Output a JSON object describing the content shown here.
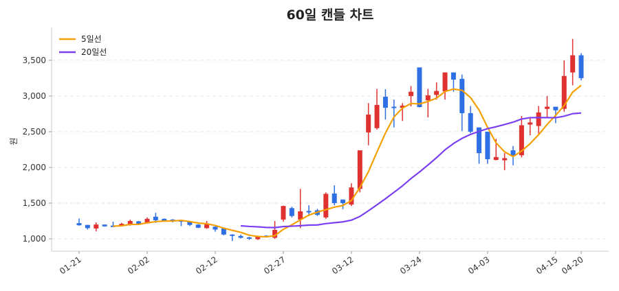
{
  "chart_data": {
    "type": "candlestick",
    "title": "60일 캔들 차트",
    "xlabel": "",
    "ylabel": "원",
    "ylim": [
      827,
      3960
    ],
    "yticks": [
      1000,
      1500,
      2000,
      2500,
      3000,
      3500
    ],
    "ytick_labels": [
      "1,000",
      "1,500",
      "2,000",
      "2,500",
      "3,000",
      "3,500"
    ],
    "xticks": [
      {
        "index": 0,
        "label": "01-21"
      },
      {
        "index": 8,
        "label": "02-02"
      },
      {
        "index": 16,
        "label": "02-12"
      },
      {
        "index": 24,
        "label": "02-27"
      },
      {
        "index": 32,
        "label": "03-12"
      },
      {
        "index": 40,
        "label": "03-24"
      },
      {
        "index": 48,
        "label": "04-03"
      },
      {
        "index": 56,
        "label": "04-15"
      },
      {
        "index": 59,
        "label": "04-20"
      }
    ],
    "grid": true,
    "legend_position": "top-left",
    "colors": {
      "up": "#e03131",
      "down": "#2f6fe4",
      "ma5": "#f59f00",
      "ma20": "#7b3ff2"
    },
    "legend": [
      {
        "key": "ma5",
        "label": "5일선",
        "window": 5
      },
      {
        "key": "ma20",
        "label": "20일선",
        "window": 20
      }
    ],
    "ohlc": [
      [
        1220,
        1190,
        1285,
        1185
      ],
      [
        1195,
        1150,
        1195,
        1130
      ],
      [
        1145,
        1200,
        1230,
        1105
      ],
      [
        1200,
        1175,
        1200,
        1170
      ],
      [
        1185,
        1175,
        1240,
        1170
      ],
      [
        1180,
        1210,
        1225,
        1175
      ],
      [
        1200,
        1250,
        1270,
        1185
      ],
      [
        1245,
        1205,
        1250,
        1200
      ],
      [
        1220,
        1280,
        1300,
        1210
      ],
      [
        1310,
        1260,
        1365,
        1225
      ],
      [
        1280,
        1250,
        1285,
        1240
      ],
      [
        1270,
        1255,
        1275,
        1230
      ],
      [
        1260,
        1250,
        1265,
        1180
      ],
      [
        1240,
        1195,
        1245,
        1180
      ],
      [
        1200,
        1155,
        1205,
        1150
      ],
      [
        1150,
        1205,
        1250,
        1140
      ],
      [
        1170,
        1130,
        1175,
        1100
      ],
      [
        1145,
        1060,
        1150,
        1050
      ],
      [
        1060,
        1045,
        1065,
        970
      ],
      [
        1040,
        1015,
        1060,
        1005
      ],
      [
        1020,
        1005,
        1030,
        985
      ],
      [
        995,
        1040,
        1045,
        985
      ],
      [
        1045,
        1035,
        1050,
        1020
      ],
      [
        1015,
        1125,
        1250,
        1000
      ],
      [
        1270,
        1460,
        1465,
        1240
      ],
      [
        1430,
        1320,
        1450,
        1300
      ],
      [
        1270,
        1385,
        1700,
        1150
      ],
      [
        1390,
        1370,
        1470,
        1330
      ],
      [
        1400,
        1335,
        1420,
        1320
      ],
      [
        1300,
        1630,
        1650,
        1280
      ],
      [
        1635,
        1500,
        1750,
        1470
      ],
      [
        1550,
        1500,
        1550,
        1415
      ],
      [
        1480,
        1720,
        1780,
        1460
      ],
      [
        1700,
        2240,
        2240,
        1650
      ],
      [
        2490,
        2740,
        2900,
        2310
      ],
      [
        2550,
        2875,
        3100,
        2530
      ],
      [
        2990,
        2835,
        3095,
        2670
      ],
      [
        2850,
        2840,
        2950,
        2560
      ],
      [
        2835,
        2865,
        2900,
        2650
      ],
      [
        3000,
        3060,
        3140,
        2855
      ],
      [
        3400,
        2845,
        3400,
        2840
      ],
      [
        2940,
        3010,
        3100,
        2700
      ],
      [
        3015,
        3070,
        3190,
        2950
      ],
      [
        3065,
        3330,
        3330,
        2950
      ],
      [
        3330,
        3230,
        3330,
        3060
      ],
      [
        3240,
        2760,
        3300,
        2510
      ],
      [
        2760,
        2500,
        2860,
        2480
      ],
      [
        2560,
        2200,
        2560,
        2050
      ],
      [
        2500,
        2115,
        2500,
        2050
      ],
      [
        2105,
        2145,
        2400,
        2100
      ],
      [
        2100,
        2130,
        2200,
        1960
      ],
      [
        2240,
        2170,
        2300,
        2030
      ],
      [
        2170,
        2590,
        2720,
        2140
      ],
      [
        2600,
        2630,
        2690,
        2450
      ],
      [
        2580,
        2770,
        2860,
        2470
      ],
      [
        2820,
        2850,
        3000,
        2700
      ],
      [
        2850,
        2800,
        2850,
        2620
      ],
      [
        2820,
        3280,
        3500,
        2780
      ],
      [
        3330,
        3570,
        3800,
        3150
      ],
      [
        3570,
        3250,
        3600,
        3220
      ]
    ]
  }
}
